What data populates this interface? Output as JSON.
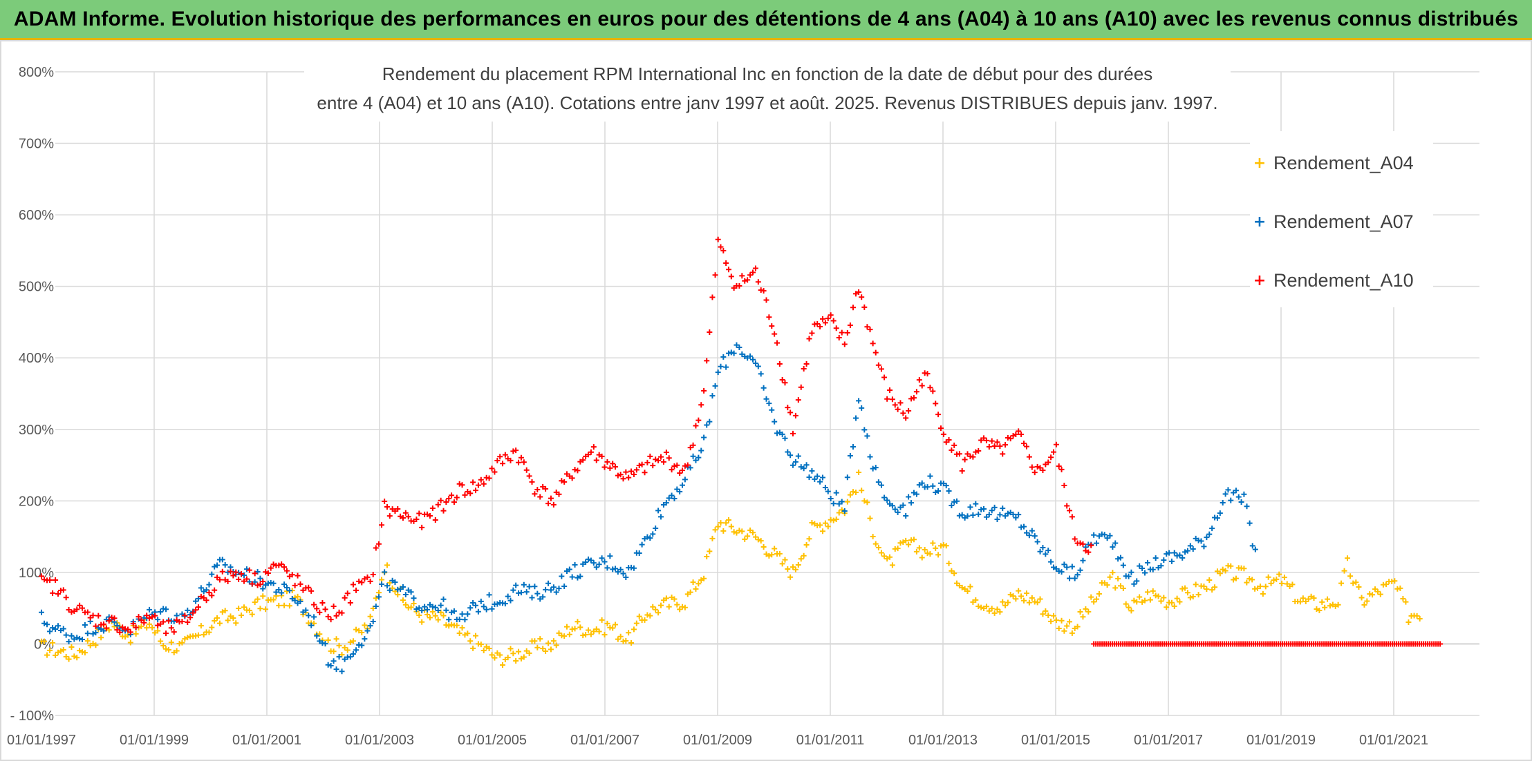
{
  "banner": {
    "title": "ADAM Informe. Evolution historique des performances en euros pour des détentions de 4 ans (A04) à 10 ans (A10) avec les revenus connus distribués"
  },
  "colors": {
    "banner_bg": "#7ccb7a",
    "banner_border": "#e7b400",
    "a04": "#ffc000",
    "a07": "#0070c0",
    "a10": "#ff0000",
    "grid": "#d9d9d9",
    "axis_text": "#595959"
  },
  "chart_data": {
    "type": "scatter",
    "title_line1": "Rendement du placement RPM International Inc en fonction de la date de début pour des durées",
    "title_line2": "entre 4 (A04) et 10 ans (A10). Cotations entre janv 1997 et août. 2025. Revenus DISTRIBUES depuis janv. 1997.",
    "xlabel": "",
    "ylabel": "",
    "x_range": [
      "1997-01-01",
      "2021-11-01"
    ],
    "ylim": [
      -100,
      800
    ],
    "y_ticks": [
      "- 100%",
      "0%",
      "100%",
      "200%",
      "300%",
      "400%",
      "500%",
      "600%",
      "700%",
      "800%"
    ],
    "x_ticks": [
      "01/01/1997",
      "01/01/1999",
      "01/01/2001",
      "01/01/2003",
      "01/01/2005",
      "01/01/2007",
      "01/01/2009",
      "01/01/2011",
      "01/01/2013",
      "01/01/2015",
      "01/01/2017",
      "01/01/2019",
      "01/01/2021"
    ],
    "grid": true,
    "marker": "+",
    "legend_position": "top-right",
    "series": [
      {
        "name": "Rendement_A04",
        "color": "#ffc000",
        "points": [
          [
            "1997-01-01",
            -5
          ],
          [
            "1997-04-01",
            -8
          ],
          [
            "1997-08-01",
            -15
          ],
          [
            "1997-12-01",
            5
          ],
          [
            "1998-04-01",
            30
          ],
          [
            "1998-08-01",
            12
          ],
          [
            "1998-12-01",
            30
          ],
          [
            "1999-03-01",
            0
          ],
          [
            "1999-07-01",
            -5
          ],
          [
            "1999-11-01",
            15
          ],
          [
            "2000-03-01",
            35
          ],
          [
            "2000-07-01",
            40
          ],
          [
            "2000-11-01",
            55
          ],
          [
            "2001-03-01",
            60
          ],
          [
            "2001-07-01",
            65
          ],
          [
            "2001-11-01",
            30
          ],
          [
            "2002-02-01",
            0
          ],
          [
            "2002-05-01",
            -5
          ],
          [
            "2002-08-01",
            10
          ],
          [
            "2002-11-01",
            30
          ],
          [
            "2003-02-01",
            110
          ],
          [
            "2003-06-01",
            60
          ],
          [
            "2003-10-01",
            40
          ],
          [
            "2004-02-01",
            35
          ],
          [
            "2004-06-01",
            15
          ],
          [
            "2004-10-01",
            0
          ],
          [
            "2005-02-01",
            -20
          ],
          [
            "2005-06-01",
            -15
          ],
          [
            "2005-10-01",
            -5
          ],
          [
            "2006-02-01",
            0
          ],
          [
            "2006-06-01",
            25
          ],
          [
            "2006-10-01",
            20
          ],
          [
            "2007-02-01",
            25
          ],
          [
            "2007-06-01",
            5
          ],
          [
            "2007-10-01",
            45
          ],
          [
            "2008-02-01",
            55
          ],
          [
            "2008-06-01",
            60
          ],
          [
            "2008-10-01",
            100
          ],
          [
            "2009-01-01",
            170
          ],
          [
            "2009-05-01",
            160
          ],
          [
            "2009-09-01",
            150
          ],
          [
            "2010-01-01",
            125
          ],
          [
            "2010-05-01",
            100
          ],
          [
            "2010-09-01",
            160
          ],
          [
            "2011-01-01",
            175
          ],
          [
            "2011-04-01",
            190
          ],
          [
            "2011-07-01",
            230
          ],
          [
            "2011-10-01",
            160
          ],
          [
            "2012-01-01",
            110
          ],
          [
            "2012-05-01",
            140
          ],
          [
            "2012-09-01",
            130
          ],
          [
            "2013-01-01",
            135
          ],
          [
            "2013-05-01",
            80
          ],
          [
            "2013-09-01",
            60
          ],
          [
            "2014-01-01",
            50
          ],
          [
            "2014-05-01",
            70
          ],
          [
            "2014-09-01",
            60
          ],
          [
            "2015-01-01",
            30
          ],
          [
            "2015-05-01",
            25
          ],
          [
            "2015-09-01",
            60
          ],
          [
            "2016-01-01",
            95
          ],
          [
            "2016-05-01",
            50
          ],
          [
            "2016-09-01",
            70
          ],
          [
            "2017-01-01",
            60
          ],
          [
            "2017-05-01",
            70
          ],
          [
            "2017-09-01",
            80
          ],
          [
            "2018-01-01",
            100
          ],
          [
            "2018-05-01",
            95
          ],
          [
            "2018-09-01",
            80
          ],
          [
            "2019-01-01",
            90
          ],
          [
            "2019-05-01",
            60
          ],
          [
            "2019-09-01",
            55
          ],
          [
            "2020-01-01",
            60
          ],
          [
            "2020-03-01",
            110
          ],
          [
            "2020-06-01",
            60
          ],
          [
            "2020-10-01",
            75
          ],
          [
            "2021-01-01",
            85
          ],
          [
            "2021-04-01",
            40
          ],
          [
            "2021-07-01",
            45
          ]
        ]
      },
      {
        "name": "Rendement_A07",
        "color": "#0070c0",
        "points": [
          [
            "1997-01-01",
            35
          ],
          [
            "1997-04-01",
            20
          ],
          [
            "1997-08-01",
            10
          ],
          [
            "1997-12-01",
            25
          ],
          [
            "1998-04-01",
            30
          ],
          [
            "1998-08-01",
            20
          ],
          [
            "1998-12-01",
            40
          ],
          [
            "1999-03-01",
            45
          ],
          [
            "1999-07-01",
            35
          ],
          [
            "1999-11-01",
            70
          ],
          [
            "2000-03-01",
            110
          ],
          [
            "2000-07-01",
            100
          ],
          [
            "2000-11-01",
            90
          ],
          [
            "2001-03-01",
            80
          ],
          [
            "2001-07-01",
            65
          ],
          [
            "2001-11-01",
            30
          ],
          [
            "2002-02-01",
            -20
          ],
          [
            "2002-05-01",
            -30
          ],
          [
            "2002-08-01",
            0
          ],
          [
            "2002-11-01",
            20
          ],
          [
            "2003-02-01",
            90
          ],
          [
            "2003-06-01",
            70
          ],
          [
            "2003-10-01",
            55
          ],
          [
            "2004-02-01",
            55
          ],
          [
            "2004-06-01",
            30
          ],
          [
            "2004-10-01",
            55
          ],
          [
            "2005-02-01",
            60
          ],
          [
            "2005-06-01",
            75
          ],
          [
            "2005-10-01",
            70
          ],
          [
            "2006-02-01",
            80
          ],
          [
            "2006-06-01",
            100
          ],
          [
            "2006-10-01",
            110
          ],
          [
            "2007-02-01",
            115
          ],
          [
            "2007-06-01",
            100
          ],
          [
            "2007-10-01",
            150
          ],
          [
            "2008-02-01",
            200
          ],
          [
            "2008-06-01",
            230
          ],
          [
            "2008-10-01",
            280
          ],
          [
            "2009-01-01",
            380
          ],
          [
            "2009-05-01",
            420
          ],
          [
            "2009-09-01",
            390
          ],
          [
            "2010-01-01",
            310
          ],
          [
            "2010-05-01",
            260
          ],
          [
            "2010-09-01",
            240
          ],
          [
            "2011-01-01",
            210
          ],
          [
            "2011-04-01",
            190
          ],
          [
            "2011-07-01",
            350
          ],
          [
            "2011-10-01",
            250
          ],
          [
            "2012-01-01",
            200
          ],
          [
            "2012-05-01",
            190
          ],
          [
            "2012-09-01",
            230
          ],
          [
            "2013-01-01",
            215
          ],
          [
            "2013-05-01",
            185
          ],
          [
            "2013-09-01",
            190
          ],
          [
            "2014-01-01",
            180
          ],
          [
            "2014-05-01",
            175
          ],
          [
            "2014-09-01",
            140
          ],
          [
            "2015-01-01",
            110
          ],
          [
            "2015-05-01",
            95
          ],
          [
            "2015-09-01",
            150
          ],
          [
            "2016-01-01",
            145
          ],
          [
            "2016-05-01",
            90
          ],
          [
            "2016-09-01",
            110
          ],
          [
            "2017-01-01",
            120
          ],
          [
            "2017-05-01",
            130
          ],
          [
            "2017-09-01",
            150
          ],
          [
            "2018-01-01",
            210
          ],
          [
            "2018-05-01",
            200
          ],
          [
            "2018-08-01",
            110
          ]
        ]
      },
      {
        "name": "Rendement_A10",
        "color": "#ff0000",
        "points": [
          [
            "1997-01-01",
            85
          ],
          [
            "1997-04-01",
            80
          ],
          [
            "1997-08-01",
            50
          ],
          [
            "1997-12-01",
            35
          ],
          [
            "1998-04-01",
            30
          ],
          [
            "1998-08-01",
            20
          ],
          [
            "1998-12-01",
            40
          ],
          [
            "1999-03-01",
            20
          ],
          [
            "1999-07-01",
            25
          ],
          [
            "1999-11-01",
            60
          ],
          [
            "2000-03-01",
            90
          ],
          [
            "2000-07-01",
            100
          ],
          [
            "2000-11-01",
            90
          ],
          [
            "2001-03-01",
            110
          ],
          [
            "2001-07-01",
            90
          ],
          [
            "2001-11-01",
            60
          ],
          [
            "2002-02-01",
            40
          ],
          [
            "2002-05-01",
            50
          ],
          [
            "2002-08-01",
            80
          ],
          [
            "2002-11-01",
            85
          ],
          [
            "2003-02-01",
            190
          ],
          [
            "2003-06-01",
            180
          ],
          [
            "2003-10-01",
            170
          ],
          [
            "2004-02-01",
            190
          ],
          [
            "2004-06-01",
            215
          ],
          [
            "2004-10-01",
            220
          ],
          [
            "2005-02-01",
            250
          ],
          [
            "2005-06-01",
            270
          ],
          [
            "2005-10-01",
            220
          ],
          [
            "2006-02-01",
            200
          ],
          [
            "2006-06-01",
            240
          ],
          [
            "2006-10-01",
            270
          ],
          [
            "2007-02-01",
            250
          ],
          [
            "2007-06-01",
            230
          ],
          [
            "2007-10-01",
            250
          ],
          [
            "2008-02-01",
            260
          ],
          [
            "2008-06-01",
            240
          ],
          [
            "2008-10-01",
            350
          ],
          [
            "2009-01-01",
            560
          ],
          [
            "2009-05-01",
            500
          ],
          [
            "2009-09-01",
            520
          ],
          [
            "2010-01-01",
            440
          ],
          [
            "2010-05-01",
            300
          ],
          [
            "2010-09-01",
            440
          ],
          [
            "2011-01-01",
            450
          ],
          [
            "2011-04-01",
            420
          ],
          [
            "2011-07-01",
            500
          ],
          [
            "2011-10-01",
            420
          ],
          [
            "2012-01-01",
            350
          ],
          [
            "2012-05-01",
            320
          ],
          [
            "2012-09-01",
            380
          ],
          [
            "2013-01-01",
            300
          ],
          [
            "2013-05-01",
            250
          ],
          [
            "2013-09-01",
            280
          ],
          [
            "2014-01-01",
            270
          ],
          [
            "2014-05-01",
            290
          ],
          [
            "2014-09-01",
            240
          ],
          [
            "2015-01-01",
            270
          ],
          [
            "2015-05-01",
            150
          ],
          [
            "2015-09-01",
            130
          ]
        ]
      }
    ],
    "zero_segment": {
      "series": "Rendement_A10",
      "from": "2015-09-01",
      "to": "2021-11-01",
      "value": 0
    }
  }
}
